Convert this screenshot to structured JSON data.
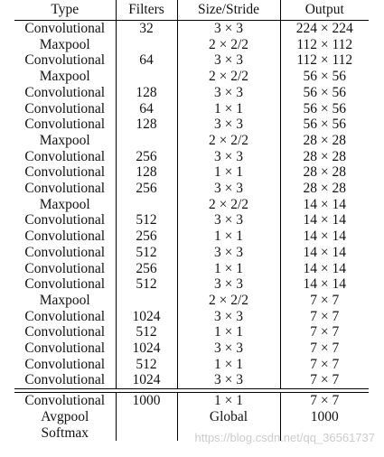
{
  "table": {
    "headers": [
      "Type",
      "Filters",
      "Size/Stride",
      "Output"
    ],
    "rows": [
      [
        "Convolutional",
        "32",
        "3 × 3",
        "224 × 224"
      ],
      [
        "Maxpool",
        "",
        "2 × 2/2",
        "112 × 112"
      ],
      [
        "Convolutional",
        "64",
        "3 × 3",
        "112 × 112"
      ],
      [
        "Maxpool",
        "",
        "2 × 2/2",
        "56 × 56"
      ],
      [
        "Convolutional",
        "128",
        "3 × 3",
        "56 × 56"
      ],
      [
        "Convolutional",
        "64",
        "1 × 1",
        "56 × 56"
      ],
      [
        "Convolutional",
        "128",
        "3 × 3",
        "56 × 56"
      ],
      [
        "Maxpool",
        "",
        "2 × 2/2",
        "28 × 28"
      ],
      [
        "Convolutional",
        "256",
        "3 × 3",
        "28 × 28"
      ],
      [
        "Convolutional",
        "128",
        "1 × 1",
        "28 × 28"
      ],
      [
        "Convolutional",
        "256",
        "3 × 3",
        "28 × 28"
      ],
      [
        "Maxpool",
        "",
        "2 × 2/2",
        "14 × 14"
      ],
      [
        "Convolutional",
        "512",
        "3 × 3",
        "14 × 14"
      ],
      [
        "Convolutional",
        "256",
        "1 × 1",
        "14 × 14"
      ],
      [
        "Convolutional",
        "512",
        "3 × 3",
        "14 × 14"
      ],
      [
        "Convolutional",
        "256",
        "1 × 1",
        "14 × 14"
      ],
      [
        "Convolutional",
        "512",
        "3 × 3",
        "14 × 14"
      ],
      [
        "Maxpool",
        "",
        "2 × 2/2",
        "7 × 7"
      ],
      [
        "Convolutional",
        "1024",
        "3 × 3",
        "7 × 7"
      ],
      [
        "Convolutional",
        "512",
        "1 × 1",
        "7 × 7"
      ],
      [
        "Convolutional",
        "1024",
        "3 × 3",
        "7 × 7"
      ],
      [
        "Convolutional",
        "512",
        "1 × 1",
        "7 × 7"
      ],
      [
        "Convolutional",
        "1024",
        "3 × 3",
        "7 × 7"
      ]
    ],
    "tail_rows": [
      [
        "Convolutional",
        "1000",
        "1 × 1",
        "7 × 7"
      ],
      [
        "Avgpool",
        "",
        "Global",
        "1000"
      ],
      [
        "Softmax",
        "",
        "",
        ""
      ]
    ]
  },
  "watermark": "https://blog.csdn.net/qq_36561737"
}
